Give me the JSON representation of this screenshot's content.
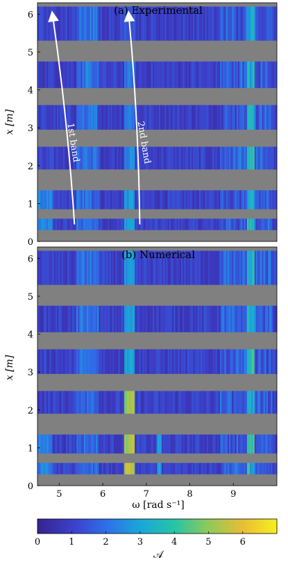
{
  "chart_data": [
    {
      "type": "heatmap",
      "title": "(a) Experimental",
      "xlabel": "",
      "ylabel": "x [m]",
      "xlim": [
        4.5,
        10.0
      ],
      "ylim": [
        0,
        6.3
      ],
      "xticks": [],
      "yticks": [
        "0",
        "1",
        "2",
        "3",
        "4",
        "5",
        "6"
      ],
      "strips_m": [
        [
          0.3,
          0.6
        ],
        [
          0.85,
          1.35
        ],
        [
          1.9,
          2.5
        ],
        [
          2.95,
          3.6
        ],
        [
          4.05,
          4.75
        ],
        [
          5.3,
          6.2
        ]
      ],
      "annotations": [
        {
          "text": "1st band",
          "from": [
            5.35,
            0.45
          ],
          "to": [
            4.85,
            5.95
          ]
        },
        {
          "text": "2nd band",
          "from": [
            6.85,
            0.45
          ],
          "to": [
            6.6,
            5.95
          ]
        }
      ]
    },
    {
      "type": "heatmap",
      "title": "(b) Numerical",
      "xlabel": "ω [rad s⁻¹]",
      "ylabel": "x [m]",
      "xlim": [
        4.5,
        10.0
      ],
      "ylim": [
        0,
        6.3
      ],
      "xticks": [
        "5",
        "6",
        "7",
        "8",
        "9"
      ],
      "yticks": [
        "0",
        "1",
        "2",
        "3",
        "4",
        "5",
        "6"
      ],
      "strips_m": [
        [
          0.3,
          0.6
        ],
        [
          0.85,
          1.35
        ],
        [
          1.9,
          2.5
        ],
        [
          2.95,
          3.6
        ],
        [
          4.05,
          4.75
        ],
        [
          5.3,
          6.2
        ]
      ]
    }
  ],
  "colorbar": {
    "label": "𝒜",
    "range": [
      0,
      7
    ],
    "ticks": [
      "0",
      "1",
      "2",
      "3",
      "4",
      "5",
      "6"
    ],
    "colors": [
      "#35248f",
      "#3d3ec8",
      "#2e6fe8",
      "#1aa6d8",
      "#26c4a7",
      "#8fc95a",
      "#e9bd34",
      "#f5f01e"
    ]
  },
  "colors": {
    "gap": "#808080",
    "background": "#ffffff"
  }
}
